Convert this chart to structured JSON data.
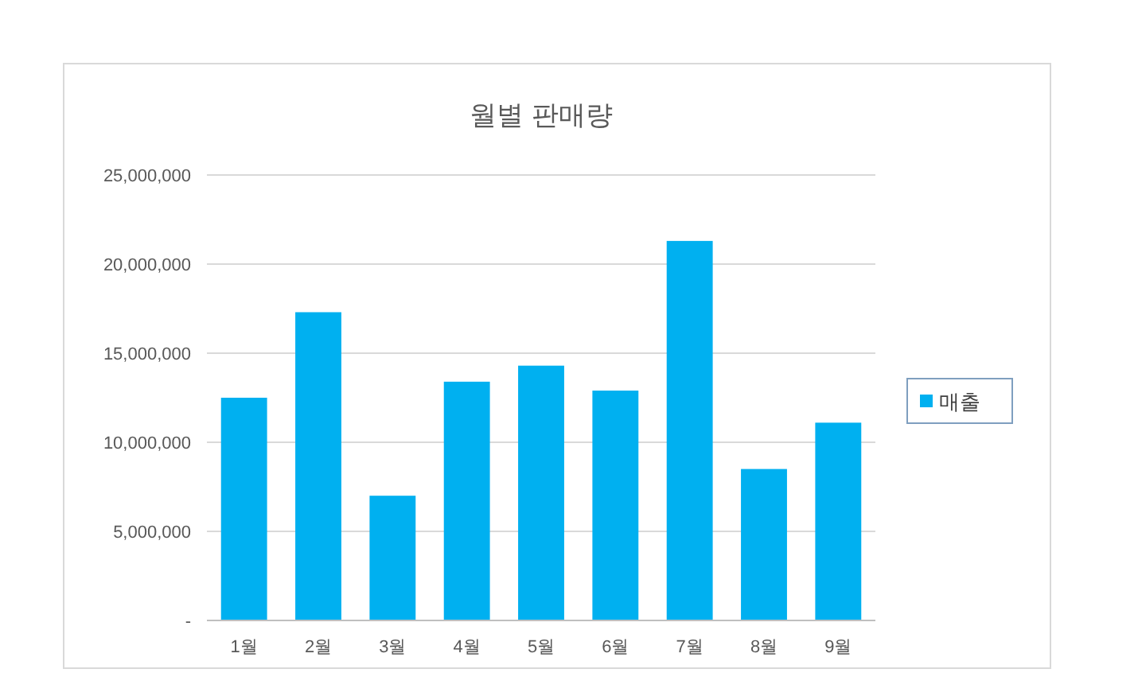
{
  "chart_data": {
    "type": "bar",
    "title": "월별 판매량",
    "categories": [
      "1월",
      "2월",
      "3월",
      "4월",
      "5월",
      "6월",
      "7월",
      "8월",
      "9월"
    ],
    "series": [
      {
        "name": "매출",
        "color": "#00b0f0",
        "values": [
          12500000,
          17300000,
          7000000,
          13400000,
          14300000,
          12900000,
          21300000,
          8500000,
          11100000
        ]
      }
    ],
    "ylim": [
      0,
      25000000
    ],
    "yticks": [
      {
        "value": 0,
        "label": "-"
      },
      {
        "value": 5000000,
        "label": "5,000,000"
      },
      {
        "value": 10000000,
        "label": "10,000,000"
      },
      {
        "value": 15000000,
        "label": "15,000,000"
      },
      {
        "value": 20000000,
        "label": "20,000,000"
      },
      {
        "value": 25000000,
        "label": "25,000,000"
      }
    ],
    "grid": "y",
    "legend": "right"
  }
}
